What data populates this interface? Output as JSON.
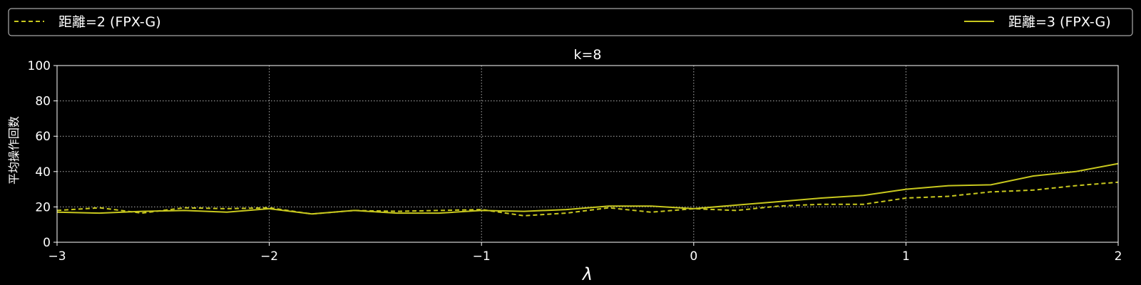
{
  "chart_data": {
    "type": "line",
    "title": "k=8",
    "xlabel": "λ",
    "ylabel": "平均操作回数",
    "xlim": [
      -3,
      2
    ],
    "ylim": [
      0,
      100
    ],
    "xticks": [
      -3,
      -2,
      -1,
      0,
      1,
      2
    ],
    "xtick_labels": [
      "−3",
      "−2",
      "−1",
      "0",
      "1",
      "2"
    ],
    "yticks": [
      0,
      20,
      40,
      60,
      80,
      100
    ],
    "ytick_labels": [
      "0",
      "20",
      "40",
      "60",
      "80",
      "100"
    ],
    "grid": true,
    "legend_placement": "top, above plot",
    "colors": {
      "background": "#000000",
      "series": "#c8c81e",
      "grid": "#b0b0b0",
      "axes": "#ffffff"
    },
    "x": [
      -3.0,
      -2.8,
      -2.6,
      -2.4,
      -2.2,
      -2.0,
      -1.8,
      -1.6,
      -1.4,
      -1.2,
      -1.0,
      -0.8,
      -0.6,
      -0.4,
      -0.2,
      0.0,
      0.2,
      0.4,
      0.6,
      0.8,
      1.0,
      1.2,
      1.4,
      1.6,
      1.8,
      2.0
    ],
    "series": [
      {
        "name": "距離=2 (FPX-G)",
        "style": "dashed",
        "values": [
          18,
          19.5,
          16.5,
          19.5,
          19,
          19.5,
          16,
          18,
          17.5,
          18,
          18.5,
          15,
          16.5,
          19.5,
          17,
          19,
          18,
          20.5,
          21.5,
          21.5,
          25,
          26,
          28.5,
          29.5,
          32,
          34
        ]
      },
      {
        "name": "距離=3 (FPX-G)",
        "style": "solid",
        "values": [
          17,
          16.5,
          17.5,
          18,
          17,
          19,
          16,
          18,
          16.5,
          16.5,
          18,
          17.5,
          18.5,
          20.5,
          20.5,
          19,
          21,
          23,
          25,
          26.5,
          30,
          32,
          32.5,
          37.5,
          40,
          44.5
        ]
      }
    ]
  }
}
